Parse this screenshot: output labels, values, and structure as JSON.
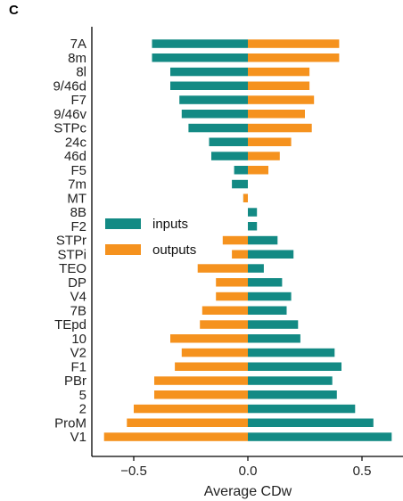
{
  "panel_label": "C",
  "colors": {
    "inputs": "#138A84",
    "outputs": "#F5921E",
    "axis": "#000000"
  },
  "chart_data": {
    "type": "bar",
    "orientation": "horizontal",
    "categories": [
      "7A",
      "8m",
      "8l",
      "9/46d",
      "F7",
      "9/46v",
      "STPc",
      "24c",
      "46d",
      "F5",
      "7m",
      "MT",
      "8B",
      "F2",
      "STPr",
      "STPi",
      "TEO",
      "DP",
      "V4",
      "7B",
      "TEpd",
      "10",
      "V2",
      "F1",
      "PBr",
      "5",
      "2",
      "ProM",
      "V1"
    ],
    "series": [
      {
        "name": "inputs",
        "values": [
          -0.42,
          -0.42,
          -0.34,
          -0.34,
          -0.3,
          -0.29,
          -0.26,
          -0.17,
          -0.16,
          -0.06,
          -0.07,
          -0.02,
          0.04,
          0.04,
          0.13,
          0.2,
          0.07,
          0.15,
          0.19,
          0.17,
          0.22,
          0.23,
          0.38,
          0.41,
          0.37,
          0.39,
          0.47,
          0.55,
          0.63
        ]
      },
      {
        "name": "outputs",
        "values": [
          0.4,
          0.4,
          0.27,
          0.27,
          0.29,
          0.25,
          0.28,
          0.19,
          0.14,
          0.09,
          0.0,
          -0.02,
          0.0,
          0.0,
          -0.11,
          -0.07,
          -0.22,
          -0.14,
          -0.14,
          -0.2,
          -0.21,
          -0.34,
          -0.29,
          -0.32,
          -0.41,
          -0.41,
          -0.5,
          -0.53,
          -0.63
        ]
      }
    ],
    "xlabel": "Average CDw",
    "ylabel": "",
    "xlim": [
      -0.7,
      0.7
    ],
    "xticks": [
      -0.5,
      0.0,
      0.5
    ],
    "xtick_labels": [
      "−0.5",
      "0.0",
      "0.5"
    ],
    "grid": false,
    "legend": {
      "placement": "center-left",
      "entries": [
        "inputs",
        "outputs"
      ]
    }
  }
}
